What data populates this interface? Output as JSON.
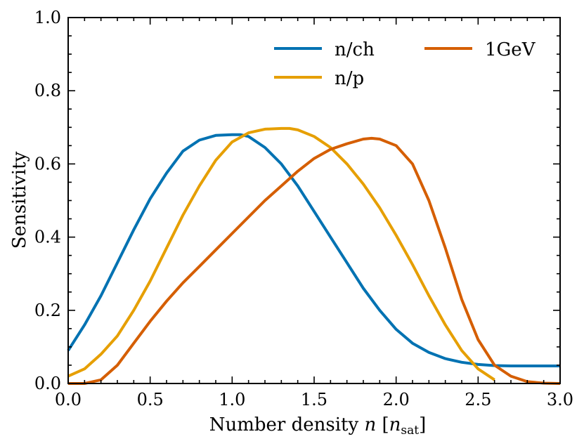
{
  "chart_data": {
    "type": "line",
    "title": "",
    "xlabel": "Number density n [n_sat]",
    "xlabel_prefix": "Number density ",
    "xlabel_var": "n",
    "xlabel_unit_sym": "n",
    "xlabel_unit_sub": "sat",
    "ylabel": "Sensitivity",
    "xlim": [
      0.0,
      3.0
    ],
    "ylim": [
      0.0,
      1.0
    ],
    "xticks": [
      "0.0",
      "0.5",
      "1.0",
      "1.5",
      "2.0",
      "2.5",
      "3.0"
    ],
    "yticks": [
      "0.0",
      "0.2",
      "0.4",
      "0.6",
      "0.8",
      "1.0"
    ],
    "xtick_values": [
      0.0,
      0.5,
      1.0,
      1.5,
      2.0,
      2.5,
      3.0
    ],
    "ytick_values": [
      0.0,
      0.2,
      0.4,
      0.6,
      0.8,
      1.0
    ],
    "grid": false,
    "legend_position": "top-right",
    "series": [
      {
        "name": "n/ch",
        "color": "#0072b2",
        "x": [
          0.0,
          0.1,
          0.2,
          0.3,
          0.4,
          0.5,
          0.6,
          0.7,
          0.8,
          0.9,
          1.0,
          1.05,
          1.1,
          1.2,
          1.3,
          1.4,
          1.5,
          1.6,
          1.7,
          1.8,
          1.9,
          2.0,
          2.1,
          2.2,
          2.3,
          2.4,
          2.5,
          2.6,
          2.7,
          2.8,
          2.9,
          3.0
        ],
        "y": [
          0.09,
          0.16,
          0.24,
          0.33,
          0.42,
          0.505,
          0.575,
          0.635,
          0.665,
          0.678,
          0.68,
          0.68,
          0.675,
          0.645,
          0.6,
          0.54,
          0.47,
          0.4,
          0.33,
          0.26,
          0.2,
          0.148,
          0.11,
          0.085,
          0.068,
          0.058,
          0.052,
          0.049,
          0.048,
          0.048,
          0.048,
          0.048
        ]
      },
      {
        "name": "n/p",
        "color": "#e69f00",
        "x": [
          0.0,
          0.1,
          0.2,
          0.3,
          0.4,
          0.5,
          0.6,
          0.7,
          0.8,
          0.9,
          1.0,
          1.1,
          1.2,
          1.3,
          1.35,
          1.4,
          1.5,
          1.6,
          1.7,
          1.8,
          1.9,
          2.0,
          2.1,
          2.2,
          2.3,
          2.4,
          2.5,
          2.6
        ],
        "y": [
          0.02,
          0.04,
          0.08,
          0.13,
          0.2,
          0.28,
          0.37,
          0.46,
          0.54,
          0.61,
          0.66,
          0.685,
          0.695,
          0.697,
          0.697,
          0.693,
          0.675,
          0.645,
          0.6,
          0.545,
          0.48,
          0.405,
          0.325,
          0.24,
          0.16,
          0.09,
          0.04,
          0.01
        ]
      },
      {
        "name": "1GeV",
        "color": "#d55e00",
        "x": [
          0.0,
          0.1,
          0.2,
          0.3,
          0.4,
          0.5,
          0.6,
          0.7,
          0.8,
          0.9,
          1.0,
          1.1,
          1.2,
          1.3,
          1.4,
          1.5,
          1.6,
          1.7,
          1.8,
          1.85,
          1.9,
          2.0,
          2.1,
          2.2,
          2.3,
          2.4,
          2.5,
          2.6,
          2.7,
          2.8,
          2.9,
          3.0
        ],
        "y": [
          0.0,
          0.0,
          0.01,
          0.05,
          0.11,
          0.17,
          0.225,
          0.275,
          0.32,
          0.365,
          0.41,
          0.455,
          0.5,
          0.54,
          0.58,
          0.615,
          0.64,
          0.655,
          0.668,
          0.67,
          0.668,
          0.65,
          0.6,
          0.5,
          0.37,
          0.23,
          0.12,
          0.05,
          0.02,
          0.005,
          0.001,
          0.0
        ]
      }
    ]
  }
}
